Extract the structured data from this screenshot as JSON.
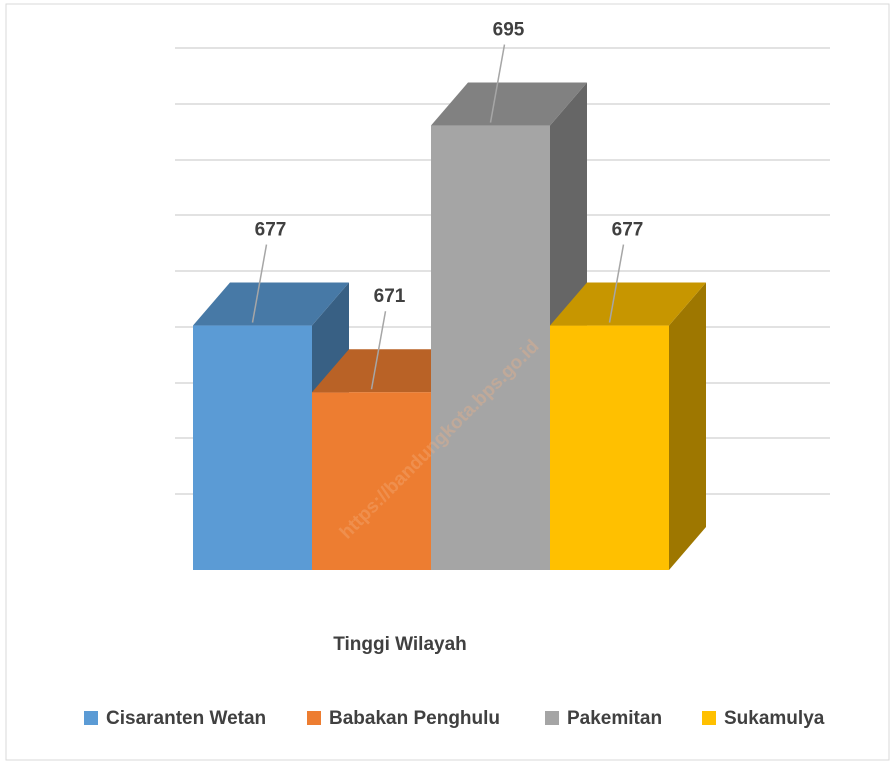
{
  "chart_data": {
    "type": "bar3d",
    "categories": [
      "Tinggi Wilayah"
    ],
    "series": [
      {
        "name": "Cisaranten Wetan",
        "color": "#5b9bd5",
        "values": [
          677
        ]
      },
      {
        "name": "Babakan Penghulu",
        "color": "#ed7d31",
        "values": [
          671
        ]
      },
      {
        "name": "Pakemitan",
        "color": "#a5a5a5",
        "values": [
          695
        ]
      },
      {
        "name": "Sukamulya",
        "color": "#ffc000",
        "values": [
          677
        ]
      }
    ],
    "ylim": [
      655,
      700
    ],
    "watermark": "https://bandungkota.bps.go.id"
  }
}
